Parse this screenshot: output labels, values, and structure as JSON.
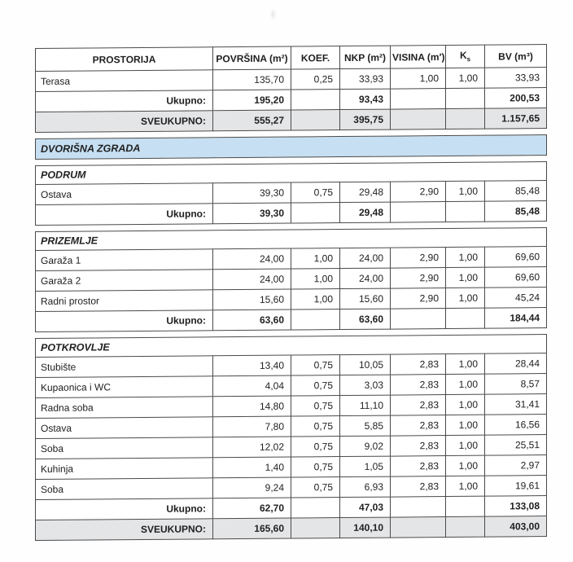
{
  "document": {
    "language": "hr",
    "columns": {
      "prostorija": "PROSTORIJA",
      "povrsina": "POVRŠINA (m²)",
      "koef": "KOEF.",
      "nkp": "NKP (m²)",
      "visina": "VISINA (m′)",
      "ks_main": "K",
      "ks_sub": "s",
      "bv": "BV (m³)"
    },
    "blocks": [
      {
        "type": "table",
        "header": true,
        "rows": [
          {
            "kind": "data",
            "cells": [
              "Terasa",
              "135,70",
              "0,25",
              "33,93",
              "1,00",
              "1,00",
              "33,93"
            ]
          },
          {
            "kind": "subtotal",
            "cells": [
              "Ukupno:",
              "195,20",
              "",
              "93,43",
              "",
              "",
              "200,53"
            ]
          },
          {
            "kind": "grandtotal",
            "cells": [
              "SVEUKUPNO:",
              "555,27",
              "",
              "395,75",
              "",
              "",
              "1.157,65"
            ]
          }
        ]
      },
      {
        "type": "banner",
        "label": "DVORIŠNA ZGRADA"
      },
      {
        "type": "table",
        "section": "PODRUM",
        "rows": [
          {
            "kind": "data",
            "cells": [
              "Ostava",
              "39,30",
              "0,75",
              "29,48",
              "2,90",
              "1,00",
              "85,48"
            ]
          },
          {
            "kind": "subtotal",
            "cells": [
              "Ukupno:",
              "39,30",
              "",
              "29,48",
              "",
              "",
              "85,48"
            ]
          }
        ]
      },
      {
        "type": "table",
        "section": "PRIZEMLJE",
        "rows": [
          {
            "kind": "data",
            "cells": [
              "Garaža 1",
              "24,00",
              "1,00",
              "24,00",
              "2,90",
              "1,00",
              "69,60"
            ]
          },
          {
            "kind": "data",
            "cells": [
              "Garaža 2",
              "24,00",
              "1,00",
              "24,00",
              "2,90",
              "1,00",
              "69,60"
            ]
          },
          {
            "kind": "data",
            "cells": [
              "Radni prostor",
              "15,60",
              "1,00",
              "15,60",
              "2,90",
              "1,00",
              "45,24"
            ]
          },
          {
            "kind": "subtotal",
            "cells": [
              "Ukupno:",
              "63,60",
              "",
              "63,60",
              "",
              "",
              "184,44"
            ]
          }
        ]
      },
      {
        "type": "table",
        "section": "POTKROVLJE",
        "rows": [
          {
            "kind": "data",
            "cells": [
              "Stubište",
              "13,40",
              "0,75",
              "10,05",
              "2,83",
              "1,00",
              "28,44"
            ]
          },
          {
            "kind": "data",
            "cells": [
              "Kupaonica i WC",
              "4,04",
              "0,75",
              "3,03",
              "2,83",
              "1,00",
              "8,57"
            ]
          },
          {
            "kind": "data",
            "cells": [
              "Radna soba",
              "14,80",
              "0,75",
              "11,10",
              "2,83",
              "1,00",
              "31,41"
            ]
          },
          {
            "kind": "data",
            "cells": [
              "Ostava",
              "7,80",
              "0,75",
              "5,85",
              "2,83",
              "1,00",
              "16,56"
            ]
          },
          {
            "kind": "data",
            "cells": [
              "Soba",
              "12,02",
              "0,75",
              "9,02",
              "2,83",
              "1,00",
              "25,51"
            ]
          },
          {
            "kind": "data",
            "cells": [
              "Kuhinja",
              "1,40",
              "0,75",
              "1,05",
              "2,83",
              "1,00",
              "2,97"
            ]
          },
          {
            "kind": "data",
            "cells": [
              "Soba",
              "9,24",
              "0,75",
              "6,93",
              "2,83",
              "1,00",
              "19,61"
            ]
          },
          {
            "kind": "subtotal",
            "cells": [
              "Ukupno:",
              "62,70",
              "",
              "47,03",
              "",
              "",
              "133,08"
            ]
          },
          {
            "kind": "grandtotal",
            "cells": [
              "SVEUKUPNO:",
              "165,60",
              "",
              "140,10",
              "",
              "",
              "403,00"
            ]
          }
        ]
      }
    ]
  },
  "colors": {
    "banner_bg": "#c6dff2",
    "total_row_bg": "#e4e5e7",
    "border": "#4a4a4a",
    "text": "#1f1f1f"
  }
}
